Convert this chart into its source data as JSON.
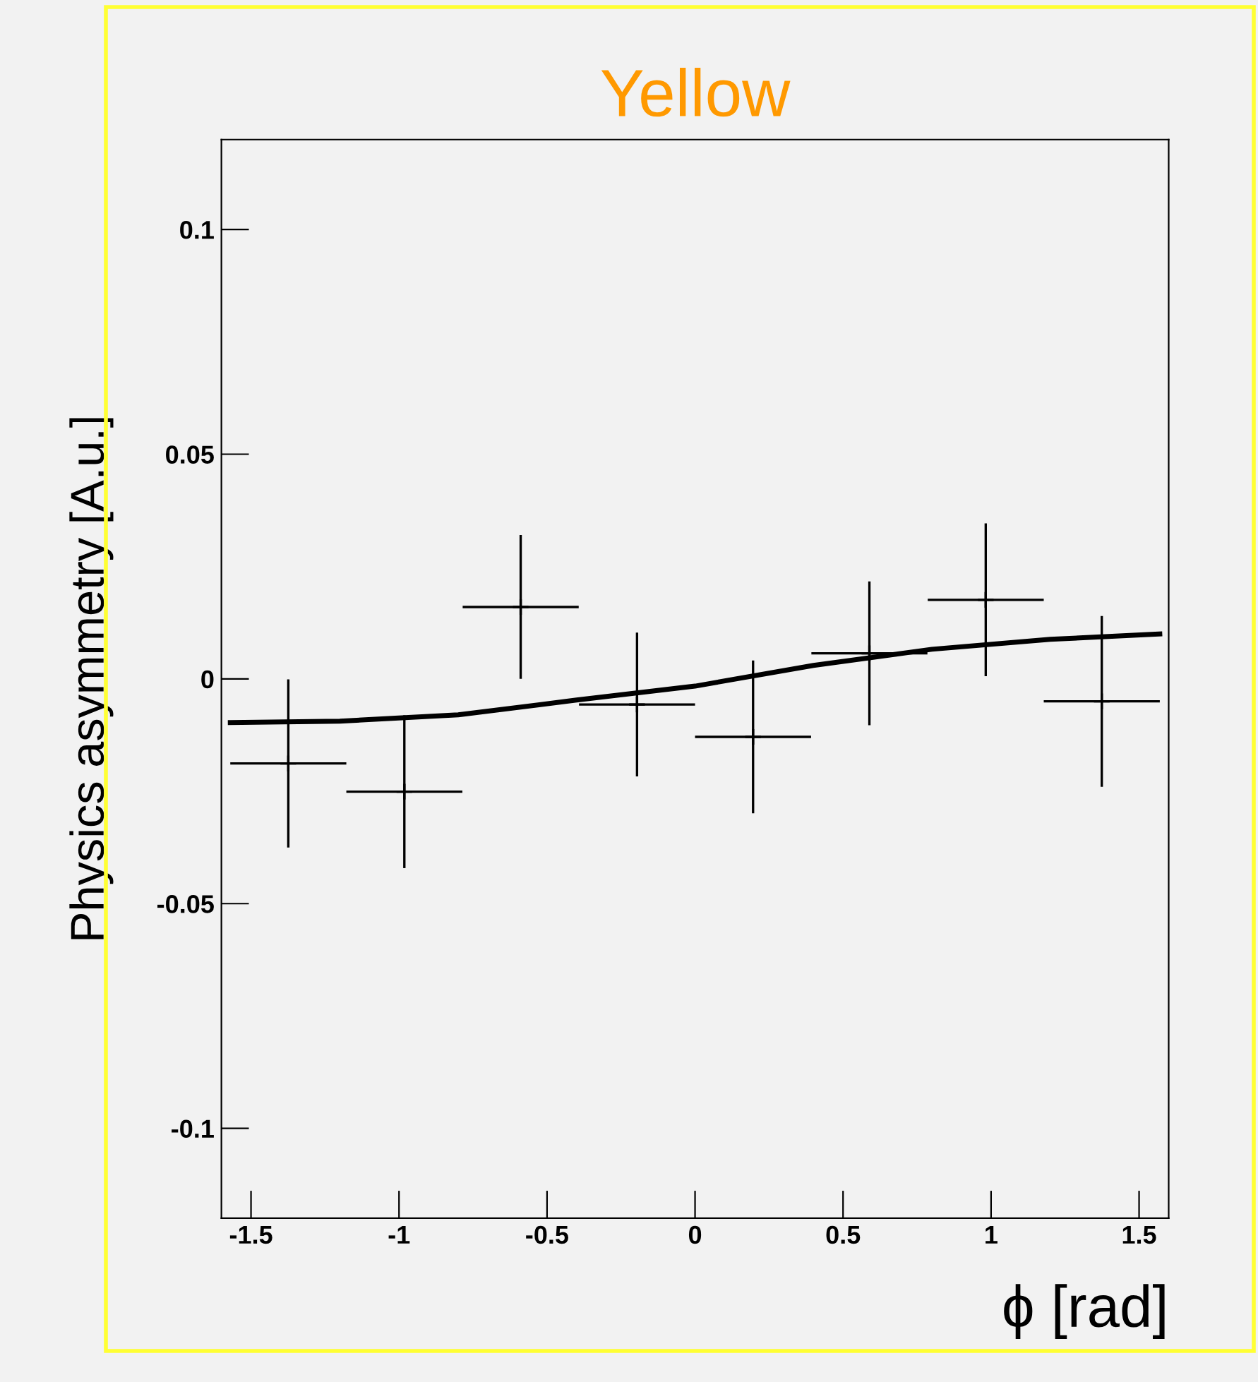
{
  "chart_data": {
    "type": "scatter",
    "title": "Yellow",
    "xlabel": "ϕ [rad]",
    "ylabel": "Physics asymmetry [A.u.]",
    "xlim": [
      -1.6,
      1.6
    ],
    "ylim": [
      -0.12,
      0.12
    ],
    "xticks": [
      -1.5,
      -1,
      -0.5,
      0,
      0.5,
      1,
      1.5
    ],
    "yticks": [
      -0.1,
      -0.05,
      0,
      0.05,
      0.1
    ],
    "grid": false,
    "legend": false,
    "series": [
      {
        "marker": "cross",
        "color": "#000000",
        "x": [
          -1.374,
          -0.982,
          -0.589,
          -0.196,
          0.196,
          0.589,
          0.982,
          1.374
        ],
        "values": [
          -0.0188,
          -0.0251,
          0.016,
          -0.0057,
          -0.0129,
          0.0057,
          0.0176,
          -0.005
        ],
        "errors": [
          0.0187,
          0.017,
          0.016,
          0.016,
          0.017,
          0.016,
          0.017,
          0.019
        ],
        "xerrors": [
          0.196,
          0.196,
          0.196,
          0.196,
          0.196,
          0.196,
          0.196,
          0.196
        ]
      },
      {
        "type": "line",
        "marker": "none",
        "color": "#000000",
        "line_style": "solid",
        "x": [
          -1.57,
          -1.2,
          -0.8,
          -0.4,
          0,
          0.4,
          0.8,
          1.2,
          1.57
        ],
        "values": [
          -0.0097,
          -0.0094,
          -0.008,
          -0.0047,
          -0.0016,
          0.003,
          0.0066,
          0.0088,
          0.01
        ]
      }
    ]
  }
}
